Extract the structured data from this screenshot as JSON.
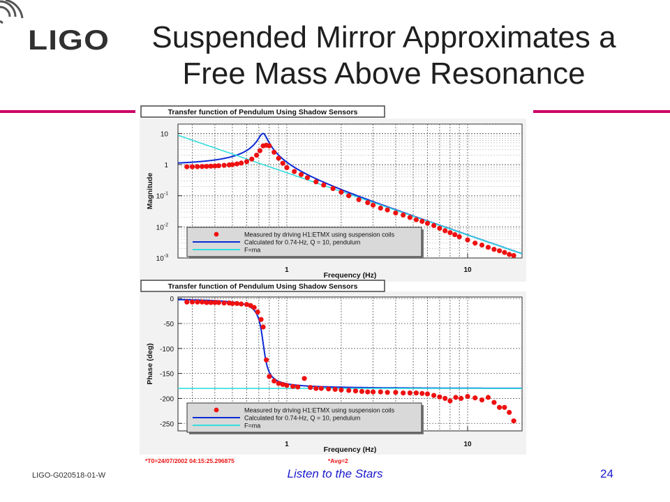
{
  "slide": {
    "logo_text": "LIGO",
    "title_line1": "Suspended Mirror Approximates a",
    "title_line2": "Free Mass Above Resonance",
    "doc_id": "LIGO-G020518-01-W",
    "tagline": "Listen to the Stars",
    "page_number": "24",
    "accent_color": "#cc0066",
    "footer_color": "#1a1acc"
  },
  "chart_data": [
    {
      "type": "scatter",
      "title": "Transfer function of Pendulum Using Shadow Sensors",
      "xlabel": "Frequency (Hz)",
      "ylabel": "Magnitude",
      "xscale": "log",
      "yscale": "log",
      "xlim": [
        0.25,
        20
      ],
      "ylim": [
        0.001,
        20
      ],
      "xticks": [
        {
          "value": 1,
          "label": "1"
        },
        {
          "value": 10,
          "label": "10"
        }
      ],
      "yticks": [
        {
          "value": 10,
          "base": "10",
          "exp": ""
        },
        {
          "value": 1,
          "base": "1",
          "exp": ""
        },
        {
          "value": 0.1,
          "base": "10",
          "exp": "-1"
        },
        {
          "value": 0.01,
          "base": "10",
          "exp": "-2"
        },
        {
          "value": 0.001,
          "base": "10",
          "exp": "-3"
        }
      ],
      "grid": true,
      "legend_position": "bottom-left",
      "series": [
        {
          "name": "Measured by driving H1:ETMX using suspension coils",
          "kind": "points",
          "color": "#ee1111",
          "x": [
            0.28,
            0.3,
            0.32,
            0.34,
            0.36,
            0.38,
            0.4,
            0.42,
            0.45,
            0.48,
            0.5,
            0.53,
            0.56,
            0.6,
            0.64,
            0.68,
            0.71,
            0.74,
            0.77,
            0.8,
            0.85,
            0.9,
            0.95,
            1.0,
            1.1,
            1.2,
            1.3,
            1.45,
            1.6,
            1.8,
            2.0,
            2.2,
            2.5,
            2.8,
            3.0,
            3.3,
            3.6,
            4.0,
            4.4,
            4.8,
            5.2,
            5.6,
            6.0,
            6.5,
            7.0,
            7.5,
            8.0,
            8.5,
            9.0,
            10,
            11,
            12,
            13,
            14,
            15,
            16,
            17,
            18
          ],
          "y": [
            0.85,
            0.85,
            0.86,
            0.87,
            0.88,
            0.89,
            0.9,
            0.92,
            0.95,
            0.98,
            1.0,
            1.05,
            1.12,
            1.25,
            1.5,
            2.0,
            2.8,
            4.0,
            4.2,
            4.0,
            2.5,
            1.6,
            1.1,
            0.8,
            0.6,
            0.48,
            0.38,
            0.28,
            0.22,
            0.17,
            0.13,
            0.1,
            0.075,
            0.06,
            0.05,
            0.04,
            0.035,
            0.028,
            0.024,
            0.02,
            0.017,
            0.015,
            0.013,
            0.011,
            0.009,
            0.0075,
            0.0065,
            0.0056,
            0.0048,
            0.0038,
            0.003,
            0.0026,
            0.0022,
            0.0019,
            0.0017,
            0.0015,
            0.0013,
            0.0012
          ]
        },
        {
          "name": "Calculated for 0.74-Hz, Q = 10, pendulum",
          "kind": "pendulum_mag",
          "color": "#0a2ad6",
          "f0": 0.74,
          "Q": 10
        },
        {
          "name": "F=ma",
          "kind": "free_mass_mag",
          "color": "#33dddd",
          "f0": 0.74
        }
      ]
    },
    {
      "type": "scatter",
      "title": "Transfer function of Pendulum Using Shadow Sensors",
      "xlabel": "Frequency (Hz)",
      "ylabel": "Phase (deg)",
      "xscale": "log",
      "yscale": "linear",
      "xlim": [
        0.25,
        20
      ],
      "ylim": [
        -265,
        3
      ],
      "xticks": [
        {
          "value": 1,
          "label": "1"
        },
        {
          "value": 10,
          "label": "10"
        }
      ],
      "yticks": [
        {
          "value": 0,
          "label": "0"
        },
        {
          "value": -50,
          "label": "-50"
        },
        {
          "value": -100,
          "label": "-100"
        },
        {
          "value": -150,
          "label": "-150"
        },
        {
          "value": -200,
          "label": "-200"
        },
        {
          "value": -250,
          "label": "-250"
        }
      ],
      "grid": true,
      "legend_position": "bottom-left",
      "annotations": [
        {
          "text": "*T0=24/07/2002 04:15:25.296875",
          "color": "#ee1111",
          "position": "below-left"
        },
        {
          "text": "*Avg=2",
          "color": "#ee1111",
          "position": "below-center"
        }
      ],
      "series": [
        {
          "name": "Measured by driving H1:ETMX using suspension coils",
          "kind": "points",
          "color": "#ee1111",
          "x": [
            0.28,
            0.3,
            0.32,
            0.34,
            0.36,
            0.38,
            0.4,
            0.42,
            0.45,
            0.48,
            0.5,
            0.53,
            0.56,
            0.6,
            0.63,
            0.66,
            0.69,
            0.72,
            0.74,
            0.77,
            0.8,
            0.85,
            0.9,
            0.95,
            1.0,
            1.08,
            1.15,
            1.25,
            1.35,
            1.45,
            1.55,
            1.7,
            1.85,
            2.0,
            2.2,
            2.4,
            2.6,
            2.8,
            3.0,
            3.3,
            3.6,
            4.0,
            4.4,
            4.8,
            5.2,
            5.6,
            6.0,
            6.5,
            7.0,
            7.5,
            8.0,
            8.6,
            9.2,
            10,
            11,
            12,
            13,
            14,
            15,
            16,
            17,
            18
          ],
          "y": [
            -7,
            -7,
            -7,
            -7,
            -8,
            -8,
            -8,
            -8,
            -9,
            -9,
            -10,
            -10,
            -11,
            -12,
            -14,
            -18,
            -27,
            -42,
            -57,
            -123,
            -156,
            -165,
            -170,
            -172,
            -174,
            -176,
            -177,
            -160,
            -178,
            -180,
            -180,
            -181,
            -182,
            -183,
            -184,
            -185,
            -186,
            -187,
            -187,
            -187,
            -188,
            -188,
            -189,
            -189,
            -189,
            -190,
            -191,
            -194,
            -197,
            -200,
            -205,
            -198,
            -200,
            -196,
            -199,
            -203,
            -198,
            -208,
            -218,
            -218,
            -228,
            -245
          ]
        },
        {
          "name": "Calculated for 0.74-Hz, Q = 10, pendulum",
          "kind": "pendulum_phase",
          "color": "#0a2ad6",
          "f0": 0.74,
          "Q": 10
        },
        {
          "name": "F=ma",
          "kind": "constant",
          "color": "#33dddd",
          "value": -180
        }
      ]
    }
  ]
}
